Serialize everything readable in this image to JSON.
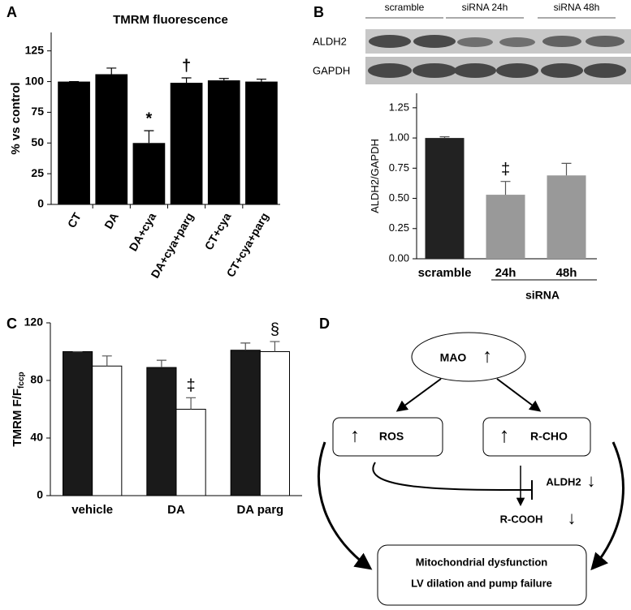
{
  "chart_data": [
    {
      "type": "bar",
      "panel_label": "A",
      "title": "TMRM fluorescence",
      "ylabel": "% vs control",
      "categories": [
        "CT",
        "DA",
        "DA+cya",
        "DA+cya+parg",
        "CT+cya",
        "CT+cya+parg"
      ],
      "values": [
        100,
        106,
        50,
        99,
        101,
        100
      ],
      "errors": [
        0,
        5,
        10,
        4,
        1.5,
        2
      ],
      "markers": [
        null,
        null,
        "*",
        "†",
        null,
        null
      ],
      "color": "#000000",
      "ylim": [
        0,
        140
      ],
      "yticks": [
        0,
        25,
        50,
        75,
        100,
        125
      ]
    },
    {
      "type": "bar",
      "panel_label": "B",
      "lanes": [
        "scramble",
        "siRNA 24h",
        "siRNA 48h"
      ],
      "blots": [
        "ALDH2",
        "GAPDH"
      ],
      "ylabel": "ALDH2/GAPDH",
      "categories": [
        "scramble",
        "24h",
        "48h"
      ],
      "group_label": "siRNA",
      "values": [
        1.0,
        0.53,
        0.69
      ],
      "errors": [
        0.01,
        0.11,
        0.1
      ],
      "markers": [
        null,
        "‡",
        null
      ],
      "colors": [
        "#222222",
        "#999999",
        "#999999"
      ],
      "ylim": [
        0,
        1.37
      ],
      "yticks": [
        {
          "value": 0,
          "label": "0.00"
        },
        {
          "value": 0.25,
          "label": "0.25"
        },
        {
          "value": 0.5,
          "label": "0.50"
        },
        {
          "value": 0.75,
          "label": "0.75"
        },
        {
          "value": 1,
          "label": "1.00"
        },
        {
          "value": 1.25,
          "label": "1.25"
        }
      ]
    },
    {
      "type": "grouped_bar",
      "panel_label": "C",
      "ylabel": "TMRM F/F",
      "ylabel_sub": "fccp",
      "categories": [
        "vehicle",
        "DA",
        "DA parg"
      ],
      "series": [
        {
          "color": "#1a1a1a",
          "values": [
            100,
            89,
            101
          ],
          "errors": [
            0,
            5,
            5
          ]
        },
        {
          "color": "#ffffff",
          "values": [
            90,
            60,
            100
          ],
          "errors": [
            7,
            8,
            7
          ],
          "markers": [
            null,
            "‡",
            "§"
          ]
        }
      ],
      "ylim": [
        0,
        120
      ],
      "yticks": [
        0,
        40,
        80,
        120
      ]
    }
  ],
  "diagram": {
    "panel_label": "D",
    "nodes": [
      {
        "label": "MAO",
        "arrow": "↑"
      },
      {
        "label": "ROS",
        "arrow": "↑"
      },
      {
        "label": "R-CHO",
        "arrow": "↑"
      },
      {
        "label": "ALDH2",
        "arrow": "↓"
      },
      {
        "label": "R-COOH",
        "arrow": "↓"
      },
      {
        "label": "Mitochondrial dysfunction"
      },
      {
        "label": "LV dilation and pump failure"
      }
    ]
  }
}
